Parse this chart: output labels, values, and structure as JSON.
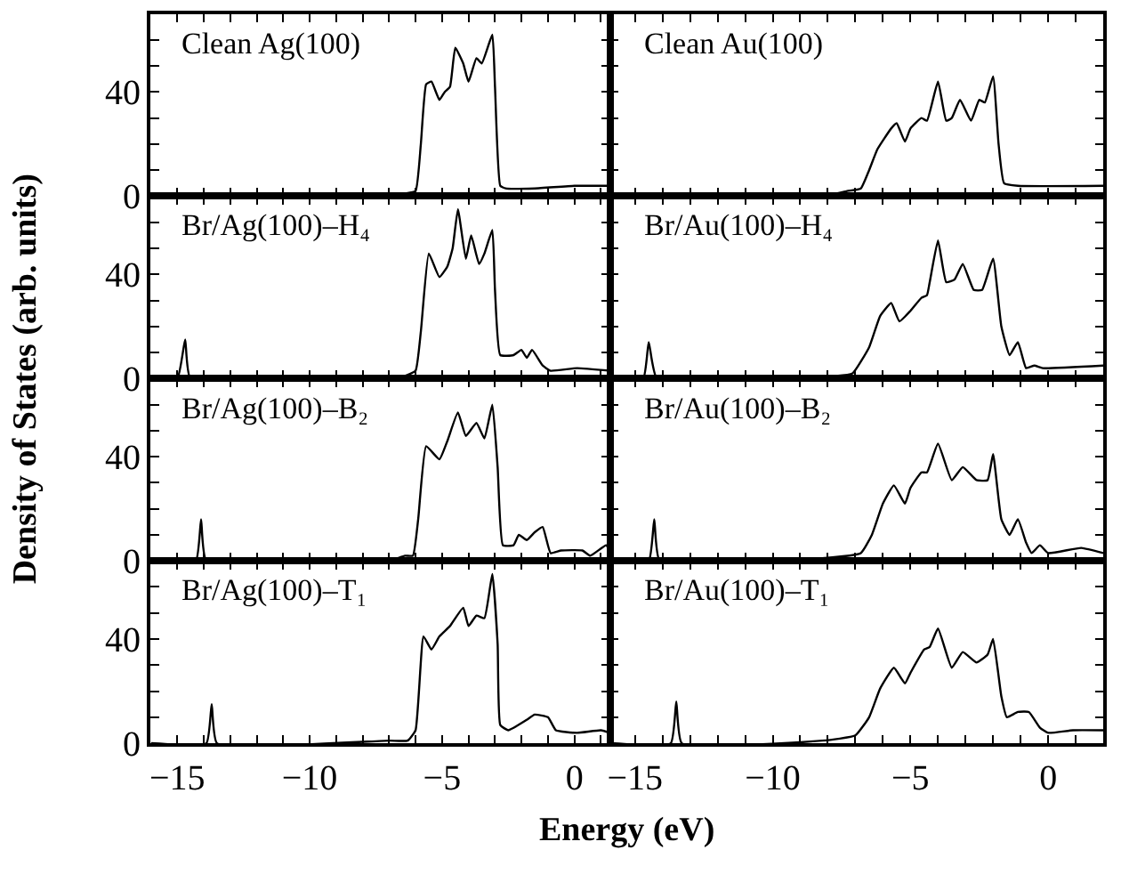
{
  "chart_data": [
    {
      "type": "line",
      "title": "Clean Ag(100)",
      "ylabel": "Density of States (arb. units)",
      "xlim": [
        -16,
        1.35
      ],
      "ylim": [
        0,
        70
      ],
      "tick_labels": "y",
      "color": "#000000",
      "marker": "none",
      "line_style": "solid",
      "xticks": [
        {
          "value": -15,
          "label": null
        },
        {
          "value": -14,
          "label": null
        },
        {
          "value": -13,
          "label": null
        },
        {
          "value": -12,
          "label": null
        },
        {
          "value": -11,
          "label": null
        },
        {
          "value": -10,
          "label": null
        },
        {
          "value": -9,
          "label": null
        },
        {
          "value": -8,
          "label": null
        },
        {
          "value": -7,
          "label": null
        },
        {
          "value": -6,
          "label": null
        },
        {
          "value": -5,
          "label": null
        },
        {
          "value": -4,
          "label": null
        },
        {
          "value": -3,
          "label": null
        },
        {
          "value": -2,
          "label": null
        },
        {
          "value": -1,
          "label": null
        },
        {
          "value": 0,
          "label": null
        },
        {
          "value": 1,
          "label": null
        }
      ],
      "yticks": [
        0,
        {
          "value": 10,
          "label": null
        },
        {
          "value": 20,
          "label": null
        },
        {
          "value": 30,
          "label": null
        },
        40,
        {
          "value": 50,
          "label": null
        },
        {
          "value": 60,
          "label": null
        }
      ],
      "x": [
        -16,
        -7.0,
        -6.4,
        -6.0,
        -5.8,
        -5.6,
        -5.4,
        -5.1,
        -4.9,
        -4.7,
        -4.5,
        -4.2,
        -4.0,
        -3.7,
        -3.5,
        -3.1,
        -3.0,
        -2.8,
        -2.6,
        -1.5,
        0,
        1.35
      ],
      "values": [
        0,
        0,
        1,
        2,
        20,
        43,
        44,
        37,
        40,
        42,
        57,
        51,
        44,
        53,
        51,
        62,
        42,
        4,
        3,
        3,
        4,
        4
      ]
    },
    {
      "type": "line",
      "title": "Clean Au(100)",
      "xlim": [
        -15.9,
        2.0
      ],
      "ylim": [
        0,
        70
      ],
      "tick_labels": false,
      "color": "#000000",
      "marker": "none",
      "line_style": "solid",
      "xticks": [
        {
          "value": -15,
          "label": null
        },
        {
          "value": -14,
          "label": null
        },
        {
          "value": -13,
          "label": null
        },
        {
          "value": -12,
          "label": null
        },
        {
          "value": -11,
          "label": null
        },
        {
          "value": -10,
          "label": null
        },
        {
          "value": -9,
          "label": null
        },
        {
          "value": -8,
          "label": null
        },
        {
          "value": -7,
          "label": null
        },
        {
          "value": -6,
          "label": null
        },
        {
          "value": -5,
          "label": null
        },
        {
          "value": -4,
          "label": null
        },
        {
          "value": -3,
          "label": null
        },
        {
          "value": -2,
          "label": null
        },
        {
          "value": -1,
          "label": null
        },
        {
          "value": 0,
          "label": null
        },
        {
          "value": 1,
          "label": null
        }
      ],
      "yticks": [
        0,
        {
          "value": 10,
          "label": null
        },
        {
          "value": 20,
          "label": null
        },
        {
          "value": 30,
          "label": null
        },
        40,
        {
          "value": 50,
          "label": null
        },
        {
          "value": 60,
          "label": null
        }
      ],
      "x": [
        -15.9,
        -8.2,
        -7.3,
        -6.8,
        -6.5,
        -6.2,
        -5.7,
        -5.5,
        -5.2,
        -5.0,
        -4.6,
        -4.4,
        -4.0,
        -3.7,
        -3.5,
        -3.2,
        -2.8,
        -2.5,
        -2.3,
        -2.0,
        -1.8,
        -1.6,
        -1.1,
        2.0
      ],
      "values": [
        0,
        0,
        2,
        3,
        10,
        18,
        26,
        28,
        21,
        26,
        30,
        29,
        44,
        29,
        30,
        37,
        29,
        37,
        36,
        46,
        20,
        5,
        4,
        4
      ]
    },
    {
      "type": "line",
      "title": "Br/Ag(100)–H₄",
      "xlim": [
        -16,
        1.35
      ],
      "ylim": [
        0,
        70
      ],
      "tick_labels": "y",
      "color": "#000000",
      "marker": "none",
      "line_style": "solid",
      "xticks": [
        {
          "value": -15,
          "label": null
        },
        {
          "value": -14,
          "label": null
        },
        {
          "value": -13,
          "label": null
        },
        {
          "value": -12,
          "label": null
        },
        {
          "value": -11,
          "label": null
        },
        {
          "value": -10,
          "label": null
        },
        {
          "value": -9,
          "label": null
        },
        {
          "value": -8,
          "label": null
        },
        {
          "value": -7,
          "label": null
        },
        {
          "value": -6,
          "label": null
        },
        {
          "value": -5,
          "label": null
        },
        {
          "value": -4,
          "label": null
        },
        {
          "value": -3,
          "label": null
        },
        {
          "value": -2,
          "label": null
        },
        {
          "value": -1,
          "label": null
        },
        {
          "value": 0,
          "label": null
        },
        {
          "value": 1,
          "label": null
        }
      ],
      "yticks": [
        0,
        {
          "value": 10,
          "label": null
        },
        {
          "value": 20,
          "label": null
        },
        {
          "value": 30,
          "label": null
        },
        40,
        {
          "value": 50,
          "label": null
        },
        {
          "value": 60,
          "label": null
        }
      ],
      "x": [
        -16,
        -15.0,
        -14.7,
        -14.5,
        -7.0,
        -6.4,
        -6.0,
        -5.8,
        -5.5,
        -5.1,
        -4.8,
        -4.6,
        -4.4,
        -4.1,
        -3.9,
        -3.6,
        -3.4,
        -3.1,
        -3.0,
        -2.8,
        -2.3,
        -2.0,
        -1.8,
        -1.6,
        -1.2,
        -0.9,
        0.1,
        1.35
      ],
      "values": [
        0,
        0,
        15,
        0,
        0,
        1,
        3,
        18,
        48,
        39,
        43,
        50,
        65,
        46,
        55,
        44,
        48,
        57,
        34,
        9,
        9,
        11,
        8,
        11,
        5,
        3,
        4,
        3
      ]
    },
    {
      "type": "line",
      "title": "Br/Au(100)–H₄",
      "xlim": [
        -15.9,
        2.0
      ],
      "ylim": [
        0,
        70
      ],
      "tick_labels": false,
      "color": "#000000",
      "marker": "none",
      "line_style": "solid",
      "xticks": [
        {
          "value": -15,
          "label": null
        },
        {
          "value": -14,
          "label": null
        },
        {
          "value": -13,
          "label": null
        },
        {
          "value": -12,
          "label": null
        },
        {
          "value": -11,
          "label": null
        },
        {
          "value": -10,
          "label": null
        },
        {
          "value": -9,
          "label": null
        },
        {
          "value": -8,
          "label": null
        },
        {
          "value": -7,
          "label": null
        },
        {
          "value": -6,
          "label": null
        },
        {
          "value": -5,
          "label": null
        },
        {
          "value": -4,
          "label": null
        },
        {
          "value": -3,
          "label": null
        },
        {
          "value": -2,
          "label": null
        },
        {
          "value": -1,
          "label": null
        },
        {
          "value": 0,
          "label": null
        },
        {
          "value": 1,
          "label": null
        }
      ],
      "yticks": [
        0,
        {
          "value": 10,
          "label": null
        },
        {
          "value": 20,
          "label": null
        },
        {
          "value": 30,
          "label": null
        },
        40,
        {
          "value": 50,
          "label": null
        },
        {
          "value": 60,
          "label": null
        }
      ],
      "x": [
        -15.9,
        -14.7,
        -14.5,
        -14.2,
        -7.7,
        -7.1,
        -6.5,
        -6.1,
        -5.7,
        -5.4,
        -5.0,
        -4.6,
        -4.4,
        -4.3,
        -4.0,
        -3.7,
        -3.4,
        -3.1,
        -2.7,
        -2.4,
        -2.0,
        -1.7,
        -1.4,
        -1.1,
        -0.8,
        -0.5,
        -0.2,
        2.0
      ],
      "values": [
        0,
        0,
        14,
        0,
        1,
        2,
        12,
        24,
        29,
        22,
        26,
        31,
        32,
        37,
        53,
        37,
        38,
        44,
        34,
        34,
        46,
        20,
        9,
        14,
        4,
        5,
        4,
        5
      ]
    },
    {
      "type": "line",
      "title": "Br/Ag(100)–B₂",
      "xlim": [
        -16,
        1.35
      ],
      "ylim": [
        0,
        70
      ],
      "tick_labels": "y",
      "color": "#000000",
      "marker": "none",
      "line_style": "solid",
      "xticks": [
        {
          "value": -15,
          "label": null
        },
        {
          "value": -14,
          "label": null
        },
        {
          "value": -13,
          "label": null
        },
        {
          "value": -12,
          "label": null
        },
        {
          "value": -11,
          "label": null
        },
        {
          "value": -10,
          "label": null
        },
        {
          "value": -9,
          "label": null
        },
        {
          "value": -8,
          "label": null
        },
        {
          "value": -7,
          "label": null
        },
        {
          "value": -6,
          "label": null
        },
        {
          "value": -5,
          "label": null
        },
        {
          "value": -4,
          "label": null
        },
        {
          "value": -3,
          "label": null
        },
        {
          "value": -2,
          "label": null
        },
        {
          "value": -1,
          "label": null
        },
        {
          "value": 0,
          "label": null
        },
        {
          "value": 1,
          "label": null
        }
      ],
      "yticks": [
        0,
        {
          "value": 10,
          "label": null
        },
        {
          "value": 20,
          "label": null
        },
        {
          "value": 30,
          "label": null
        },
        40,
        {
          "value": 50,
          "label": null
        },
        {
          "value": 60,
          "label": null
        }
      ],
      "x": [
        -16,
        -14.3,
        -14.1,
        -13.9,
        -7.0,
        -6.4,
        -6.1,
        -5.9,
        -5.6,
        -5.1,
        -4.8,
        -4.4,
        -4.1,
        -3.7,
        -3.4,
        -3.1,
        -2.9,
        -2.7,
        -2.3,
        -2.1,
        -1.8,
        -1.5,
        -1.2,
        -0.9,
        -0.5,
        0.3,
        0.6,
        1.2,
        1.35
      ],
      "values": [
        0,
        0,
        16,
        0,
        0,
        2,
        2,
        16,
        44,
        39,
        46,
        57,
        48,
        53,
        47,
        60,
        36,
        6,
        6,
        10,
        8,
        11,
        13,
        3,
        4,
        4,
        2,
        6,
        3
      ]
    },
    {
      "type": "line",
      "title": "Br/Au(100)–B₂",
      "xlim": [
        -15.9,
        2.0
      ],
      "ylim": [
        0,
        70
      ],
      "tick_labels": false,
      "color": "#000000",
      "marker": "none",
      "line_style": "solid",
      "xticks": [
        {
          "value": -15,
          "label": null
        },
        {
          "value": -14,
          "label": null
        },
        {
          "value": -13,
          "label": null
        },
        {
          "value": -12,
          "label": null
        },
        {
          "value": -11,
          "label": null
        },
        {
          "value": -10,
          "label": null
        },
        {
          "value": -9,
          "label": null
        },
        {
          "value": -8,
          "label": null
        },
        {
          "value": -7,
          "label": null
        },
        {
          "value": -6,
          "label": null
        },
        {
          "value": -5,
          "label": null
        },
        {
          "value": -4,
          "label": null
        },
        {
          "value": -3,
          "label": null
        },
        {
          "value": -2,
          "label": null
        },
        {
          "value": -1,
          "label": null
        },
        {
          "value": 0,
          "label": null
        },
        {
          "value": 1,
          "label": null
        }
      ],
      "yticks": [
        0,
        {
          "value": 10,
          "label": null
        },
        {
          "value": 20,
          "label": null
        },
        {
          "value": 30,
          "label": null
        },
        40,
        {
          "value": 50,
          "label": null
        },
        {
          "value": 60,
          "label": null
        }
      ],
      "x": [
        -15.9,
        -14.5,
        -14.3,
        -14.1,
        -8.2,
        -6.8,
        -6.4,
        -6.0,
        -5.6,
        -5.2,
        -5.0,
        -4.6,
        -4.4,
        -4.0,
        -3.5,
        -3.1,
        -2.6,
        -2.2,
        -2.0,
        -1.7,
        -1.4,
        -1.1,
        -0.8,
        -0.6,
        -0.3,
        0.0,
        1.2,
        2.0
      ],
      "values": [
        0,
        0,
        16,
        0,
        1,
        3,
        10,
        22,
        29,
        22,
        28,
        34,
        34,
        45,
        31,
        36,
        31,
        31,
        41,
        16,
        10,
        16,
        7,
        3,
        6,
        3,
        5,
        3
      ]
    },
    {
      "type": "line",
      "title": "Br/Ag(100)–T₁",
      "xlabel": "Energy (eV)",
      "xlim": [
        -16,
        1.35
      ],
      "ylim": [
        0,
        70
      ],
      "color": "#000000",
      "marker": "none",
      "line_style": "solid",
      "xticks": [
        -15,
        {
          "value": -14,
          "label": null
        },
        {
          "value": -13,
          "label": null
        },
        {
          "value": -12,
          "label": null
        },
        {
          "value": -11,
          "label": null
        },
        -10,
        {
          "value": -9,
          "label": null
        },
        {
          "value": -8,
          "label": null
        },
        {
          "value": -7,
          "label": null
        },
        {
          "value": -6,
          "label": null
        },
        -5,
        {
          "value": -4,
          "label": null
        },
        {
          "value": -3,
          "label": null
        },
        {
          "value": -2,
          "label": null
        },
        {
          "value": -1,
          "label": null
        },
        0,
        {
          "value": 1,
          "label": null
        }
      ],
      "yticks": [
        0,
        {
          "value": 10,
          "label": null
        },
        {
          "value": 20,
          "label": null
        },
        {
          "value": 30,
          "label": null
        },
        40,
        {
          "value": 50,
          "label": null
        },
        {
          "value": 60,
          "label": null
        }
      ],
      "x": [
        -16,
        -13.9,
        -13.7,
        -13.5,
        -7.0,
        -6.3,
        -6.0,
        -5.7,
        -5.4,
        -5.1,
        -4.7,
        -4.2,
        -4.0,
        -3.7,
        -3.4,
        -3.1,
        -2.9,
        -2.8,
        -2.5,
        -1.8,
        -1.5,
        -1.0,
        -0.7,
        0.1,
        1.0,
        1.35
      ],
      "values": [
        0,
        0,
        15,
        0,
        1,
        1,
        5,
        41,
        36,
        41,
        45,
        52,
        45,
        49,
        48,
        65,
        38,
        7,
        5,
        9,
        11,
        10,
        5,
        4,
        5,
        4
      ]
    },
    {
      "type": "line",
      "title": "Br/Au(100)–T₁",
      "xlim": [
        -15.9,
        2.0
      ],
      "ylim": [
        0,
        70
      ],
      "tick_labels": "x",
      "color": "#000000",
      "marker": "none",
      "line_style": "solid",
      "xticks": [
        -15,
        {
          "value": -14,
          "label": null
        },
        {
          "value": -13,
          "label": null
        },
        {
          "value": -12,
          "label": null
        },
        {
          "value": -11,
          "label": null
        },
        -10,
        {
          "value": -9,
          "label": null
        },
        {
          "value": -8,
          "label": null
        },
        {
          "value": -7,
          "label": null
        },
        {
          "value": -6,
          "label": null
        },
        -5,
        {
          "value": -4,
          "label": null
        },
        {
          "value": -3,
          "label": null
        },
        {
          "value": -2,
          "label": null
        },
        {
          "value": -1,
          "label": null
        },
        0,
        {
          "value": 1,
          "label": null
        }
      ],
      "yticks": [
        0,
        {
          "value": 10,
          "label": null
        },
        {
          "value": 20,
          "label": null
        },
        {
          "value": 30,
          "label": null
        },
        40,
        {
          "value": 50,
          "label": null
        },
        {
          "value": 60,
          "label": null
        }
      ],
      "x": [
        -15.9,
        -13.7,
        -13.5,
        -13.3,
        -8.2,
        -7.0,
        -6.5,
        -6.1,
        -5.6,
        -5.2,
        -5.0,
        -4.5,
        -4.3,
        -4.0,
        -3.5,
        -3.1,
        -2.6,
        -2.2,
        -2.0,
        -1.7,
        -1.5,
        -1.1,
        -0.7,
        -0.3,
        0.0,
        0.9,
        2.0
      ],
      "values": [
        0,
        0,
        16,
        0,
        1,
        3,
        10,
        21,
        29,
        23,
        27,
        36,
        37,
        44,
        29,
        35,
        31,
        34,
        40,
        18,
        10,
        12,
        12,
        6,
        4,
        5,
        5
      ]
    }
  ]
}
